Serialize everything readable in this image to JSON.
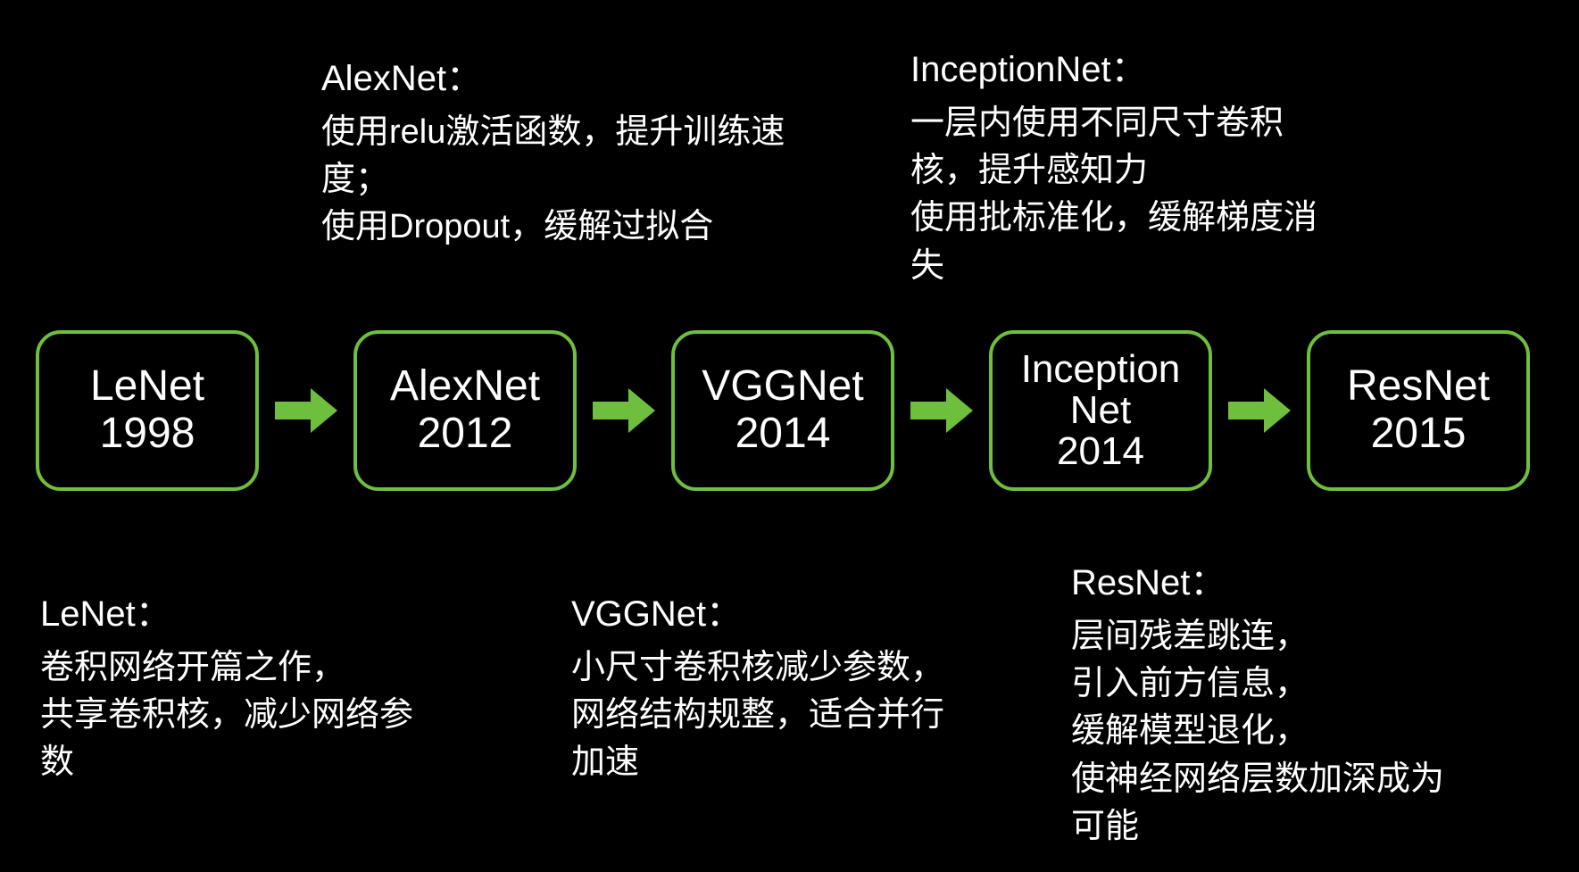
{
  "type": "flowchart",
  "background_color": "#000000",
  "node_border_color": "#6fbf3f",
  "node_border_width": 4,
  "node_border_radius": 28,
  "arrow_color": "#6fbf3f",
  "text_color": "#ffffff",
  "node_fontsize": 48,
  "desc_fontsize": 38,
  "nodes": [
    {
      "id": "lenet",
      "line1": "LeNet",
      "line2": "1998"
    },
    {
      "id": "alexnet",
      "line1": "AlexNet",
      "line2": "2012"
    },
    {
      "id": "vggnet",
      "line1": "VGGNet",
      "line2": "2014"
    },
    {
      "id": "inception",
      "line1": "Inception",
      "line2": "Net",
      "line3": "2014"
    },
    {
      "id": "resnet",
      "line1": "ResNet",
      "line2": "2015"
    }
  ],
  "descriptions": {
    "alexnet": {
      "title": "AlexNet：",
      "body": "使用relu激活函数，提升训练速度；\n使用Dropout，缓解过拟合"
    },
    "inception": {
      "title": "InceptionNet：",
      "body": "一层内使用不同尺寸卷积核，提升感知力\n使用批标准化，缓解梯度消失"
    },
    "lenet": {
      "title": "LeNet：",
      "body": "卷积网络开篇之作，\n共享卷积核，减少网络参数"
    },
    "vggnet": {
      "title": "VGGNet：",
      "body": "小尺寸卷积核减少参数，网络结构规整，适合并行加速"
    },
    "resnet": {
      "title": "ResNet：",
      "body": "层间残差跳连，\n引入前方信息，\n缓解模型退化，\n使神经网络层数加深成为可能"
    }
  }
}
